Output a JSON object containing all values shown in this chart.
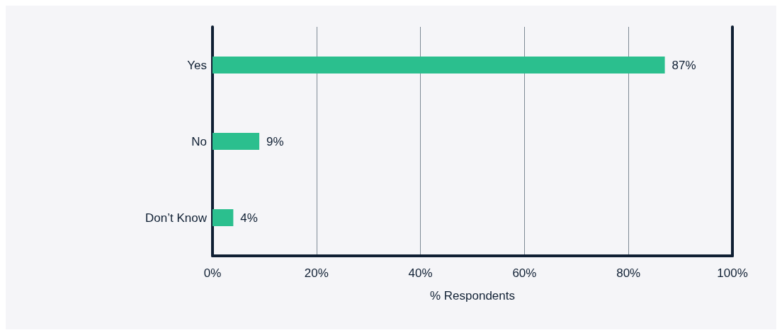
{
  "chart_data": {
    "type": "bar",
    "orientation": "horizontal",
    "xlabel": "% Respondents",
    "categories": [
      "Yes",
      "No",
      "Don’t Know"
    ],
    "values": [
      87,
      9,
      4
    ],
    "value_labels": [
      "87%",
      "9%",
      "4%"
    ],
    "color": "#2bbf8e",
    "xlim": [
      0,
      100
    ],
    "xticks": [
      {
        "value": 0,
        "label": "0%"
      },
      {
        "value": 20,
        "label": "20%"
      },
      {
        "value": 40,
        "label": "40%"
      },
      {
        "value": 60,
        "label": "60%"
      },
      {
        "value": 80,
        "label": "80%"
      },
      {
        "value": 100,
        "label": "100%"
      }
    ],
    "grid": "x"
  }
}
